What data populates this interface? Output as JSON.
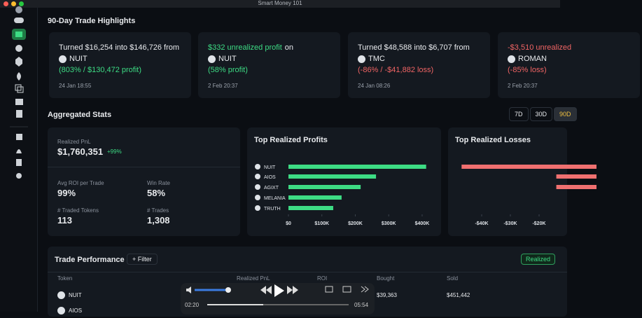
{
  "window_title": "Smart Money 101",
  "highlights": {
    "title": "90-Day Trade Highlights",
    "cards": [
      {
        "parts": [
          {
            "text": "Turned $16,254 into $146,726 from",
            "accent": false
          }
        ],
        "token": "NUIT",
        "result": "(803% / $130,472 profit)",
        "tone": "profit",
        "date": "24 Jan 18:55"
      },
      {
        "parts": [
          {
            "text": "$332 unrealized profit",
            "accent": true
          },
          {
            "text": "on",
            "accent": false
          }
        ],
        "token": "NUIT",
        "result": "(58% profit)",
        "tone": "profit",
        "date": "2 Feb 20:37"
      },
      {
        "parts": [
          {
            "text": "Turned $48,588 into $6,707 from",
            "accent": false
          }
        ],
        "token": "TMC",
        "result": "(-86% / -$41,882 loss)",
        "tone": "loss",
        "date": "24 Jan 08:26"
      },
      {
        "parts": [
          {
            "text": "-$3,510 unrealized",
            "accent": true
          }
        ],
        "token": "ROMAN",
        "result": "(-85% loss)",
        "tone": "loss",
        "date": "2 Feb 20:37"
      }
    ]
  },
  "aggregated": {
    "title": "Aggregated Stats",
    "periods": [
      "7D",
      "30D",
      "90D"
    ],
    "realized_label": "Realized PnL",
    "realized_value": "$1,760,351",
    "realized_change": "+99%",
    "stats": [
      {
        "label": "Avg ROI per Trade",
        "value": "99%"
      },
      {
        "label": "Win Rate",
        "value": "58%"
      },
      {
        "label": "# Traded Tokens",
        "value": "113"
      },
      {
        "label": "# Trades",
        "value": "1,308"
      }
    ]
  },
  "charts": [
    {
      "type": "bar",
      "orientation": "horizontal",
      "title": "Top Realized Profits",
      "color": "#3ddc84",
      "categories": [
        "NUIT",
        "AIOS",
        "AGIXT",
        "MELANIA",
        "TRUTH"
      ],
      "values": [
        412000,
        262000,
        216000,
        159000,
        134000
      ],
      "xlim": [
        0,
        420000
      ],
      "xticks": [
        {
          "value": 0,
          "label": "$0"
        },
        {
          "value": 100000,
          "label": "$100K"
        },
        {
          "value": 200000,
          "label": "$200K"
        },
        {
          "value": 300000,
          "label": "$300K"
        },
        {
          "value": 400000,
          "label": "$400K"
        }
      ]
    },
    {
      "type": "bar",
      "orientation": "horizontal",
      "title": "Top Realized Losses",
      "color": "#f07070",
      "categories": [
        null,
        null,
        null
      ],
      "values": [
        -47000,
        -14000,
        -14000
      ],
      "xlim": [
        -50000,
        0
      ],
      "xticks": [
        {
          "value": -40000,
          "label": "-$40K"
        },
        {
          "value": -30000,
          "label": "-$30K"
        },
        {
          "value": -20000,
          "label": "-$20K"
        }
      ]
    }
  ],
  "performance": {
    "title": "Trade Performance",
    "filter": "Filter",
    "mode": "Realized",
    "columns": [
      "Token",
      "Realized PnL",
      "ROI",
      "Bought",
      "Sold"
    ],
    "rows": [
      {
        "token": "NUIT",
        "bought": "$39,363",
        "sold": "$451,442"
      },
      {
        "token": "AIOS"
      }
    ]
  },
  "player": {
    "elapsed": "02:20",
    "total": "05:54"
  }
}
